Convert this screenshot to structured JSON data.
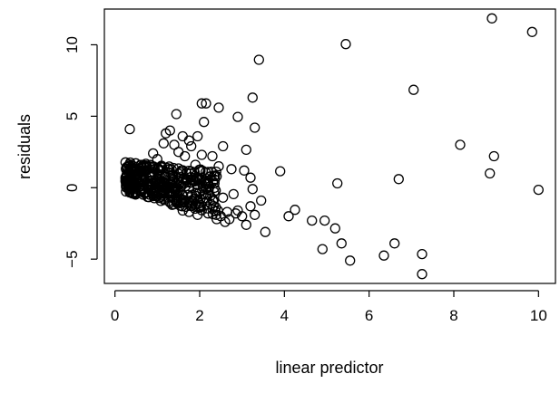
{
  "chart_data": {
    "type": "scatter",
    "title": "",
    "xlabel": "linear predictor",
    "ylabel": "residuals",
    "xlim": [
      -0.25,
      10.4
    ],
    "ylim": [
      -6.7,
      12.5
    ],
    "x_ticks": [
      0,
      2,
      4,
      6,
      8,
      10
    ],
    "y_ticks": [
      -5,
      0,
      5,
      10
    ],
    "grid": false,
    "legend": "none",
    "marker": "open-circle",
    "point_color": "#000000",
    "points": [
      [
        0.35,
        4.1
      ],
      [
        0.9,
        2.4
      ],
      [
        1.2,
        3.8
      ],
      [
        1.45,
        5.15
      ],
      [
        1.3,
        4.0
      ],
      [
        1.6,
        3.6
      ],
      [
        1.75,
        3.3
      ],
      [
        1.95,
        3.6
      ],
      [
        2.05,
        5.9
      ],
      [
        2.15,
        5.9
      ],
      [
        2.1,
        4.6
      ],
      [
        2.45,
        5.6
      ],
      [
        2.55,
        2.9
      ],
      [
        2.75,
        1.3
      ],
      [
        2.9,
        4.95
      ],
      [
        3.05,
        1.2
      ],
      [
        3.1,
        2.65
      ],
      [
        3.25,
        6.3
      ],
      [
        3.3,
        4.2
      ],
      [
        3.4,
        8.95
      ],
      [
        3.9,
        1.15
      ],
      [
        5.45,
        10.05
      ],
      [
        7.05,
        6.85
      ],
      [
        8.9,
        11.85
      ],
      [
        9.85,
        10.9
      ],
      [
        8.15,
        3.0
      ],
      [
        8.95,
        2.2
      ],
      [
        8.85,
        1.0
      ],
      [
        10.0,
        -0.15
      ],
      [
        6.7,
        0.6
      ],
      [
        5.25,
        0.3
      ],
      [
        2.55,
        -0.7
      ],
      [
        2.65,
        -1.7
      ],
      [
        2.8,
        -0.45
      ],
      [
        2.9,
        -1.6
      ],
      [
        3.0,
        -2.0
      ],
      [
        3.1,
        -2.6
      ],
      [
        3.2,
        -1.3
      ],
      [
        3.3,
        -1.9
      ],
      [
        3.45,
        -0.9
      ],
      [
        3.25,
        -0.1
      ],
      [
        3.2,
        0.7
      ],
      [
        3.55,
        -3.1
      ],
      [
        4.1,
        -2.0
      ],
      [
        4.25,
        -1.55
      ],
      [
        4.65,
        -2.3
      ],
      [
        4.95,
        -2.3
      ],
      [
        4.9,
        -4.3
      ],
      [
        5.2,
        -2.85
      ],
      [
        5.35,
        -3.9
      ],
      [
        5.55,
        -5.1
      ],
      [
        6.35,
        -4.75
      ],
      [
        6.6,
        -3.9
      ],
      [
        7.25,
        -4.65
      ],
      [
        7.25,
        -6.05
      ],
      [
        2.4,
        -2.2
      ],
      [
        2.3,
        -1.5
      ],
      [
        2.5,
        -2.0
      ],
      [
        2.2,
        -1.8
      ],
      [
        2.6,
        -2.4
      ],
      [
        2.7,
        -2.2
      ],
      [
        2.85,
        -1.8
      ],
      [
        2.4,
        0.8
      ],
      [
        2.35,
        0.3
      ],
      [
        2.45,
        1.5
      ],
      [
        2.2,
        1.1
      ],
      [
        2.05,
        2.3
      ],
      [
        2.3,
        2.2
      ],
      [
        1.8,
        2.9
      ],
      [
        1.5,
        2.5
      ],
      [
        1.4,
        3.0
      ],
      [
        1.15,
        3.1
      ],
      [
        1.0,
        2.0
      ],
      [
        0.75,
        1.5
      ],
      [
        0.6,
        1.2
      ],
      [
        0.5,
        0.9
      ],
      [
        0.45,
        0.4
      ],
      [
        0.3,
        0.2
      ],
      [
        0.25,
        0.5
      ],
      [
        0.35,
        -0.1
      ],
      [
        0.5,
        -0.3
      ],
      [
        0.7,
        -0.4
      ],
      [
        1.9,
        1.6
      ],
      [
        1.65,
        2.2
      ],
      [
        1.85,
        -1.0
      ],
      [
        2.0,
        -1.3
      ],
      [
        1.6,
        -1.6
      ],
      [
        1.95,
        -1.9
      ],
      [
        1.35,
        -1.2
      ],
      [
        1.75,
        -1.7
      ],
      [
        2.2,
        -0.5
      ],
      [
        2.05,
        0.3
      ]
    ]
  }
}
